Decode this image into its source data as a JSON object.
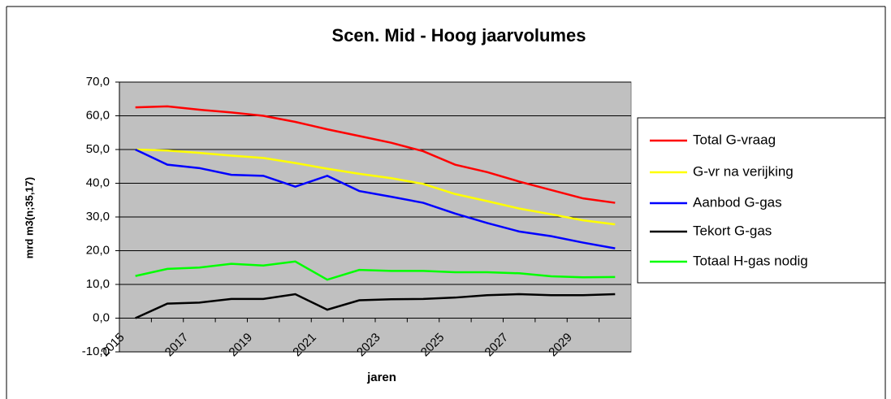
{
  "chart_data": {
    "type": "line",
    "title": "Scen. Mid - Hoog jaarvolumes",
    "xlabel": "jaren",
    "ylabel": "mrd m3(n;35,17)",
    "categories": [
      "2015",
      null,
      "2017",
      null,
      "2019",
      null,
      "2021",
      null,
      "2023",
      null,
      "2025",
      null,
      "2027",
      null,
      "2029",
      null
    ],
    "series": [
      {
        "name": "Total G-vraag",
        "color": "#ff0000",
        "values": [
          62.5,
          62.8,
          61.8,
          61.0,
          60.0,
          58.2,
          56.0,
          54.0,
          52.0,
          49.5,
          45.5,
          43.3,
          40.5,
          38.0,
          35.5,
          34.2
        ]
      },
      {
        "name": "G-vr na verijking",
        "color": "#ffff00",
        "values": [
          50.0,
          49.7,
          49.0,
          48.2,
          47.5,
          46.0,
          44.3,
          42.8,
          41.5,
          39.8,
          36.8,
          34.7,
          32.5,
          30.8,
          29.0,
          27.8
        ]
      },
      {
        "name": "Aanbod G-gas",
        "color": "#0000ff",
        "values": [
          50.0,
          45.5,
          44.5,
          42.5,
          42.2,
          39.0,
          42.2,
          37.7,
          36.0,
          34.2,
          31.0,
          28.2,
          25.7,
          24.3,
          22.4,
          20.7
        ]
      },
      {
        "name": "Tekort G-gas",
        "color": "#000000",
        "values": [
          0.0,
          4.3,
          4.6,
          5.7,
          5.7,
          7.1,
          2.5,
          5.3,
          5.6,
          5.7,
          6.1,
          6.8,
          7.1,
          6.8,
          6.8,
          7.1
        ]
      },
      {
        "name": "Totaal H-gas nodig",
        "color": "#00ff00",
        "values": [
          12.5,
          14.6,
          15.0,
          16.1,
          15.6,
          16.8,
          11.4,
          14.3,
          14.0,
          14.0,
          13.6,
          13.6,
          13.3,
          12.4,
          12.1,
          12.2
        ]
      }
    ],
    "ylim": [
      -10,
      70
    ],
    "yticks": [
      {
        "value": -10,
        "label": "-10,0"
      },
      {
        "value": 0,
        "label": "0,0"
      },
      {
        "value": 10,
        "label": "10,0"
      },
      {
        "value": 20,
        "label": "20,0"
      },
      {
        "value": 30,
        "label": "30,0"
      },
      {
        "value": 40,
        "label": "40,0"
      },
      {
        "value": 50,
        "label": "50,0"
      },
      {
        "value": 60,
        "label": "60,0"
      },
      {
        "value": 70,
        "label": "70,0"
      }
    ],
    "grid": true,
    "legend": "right"
  }
}
